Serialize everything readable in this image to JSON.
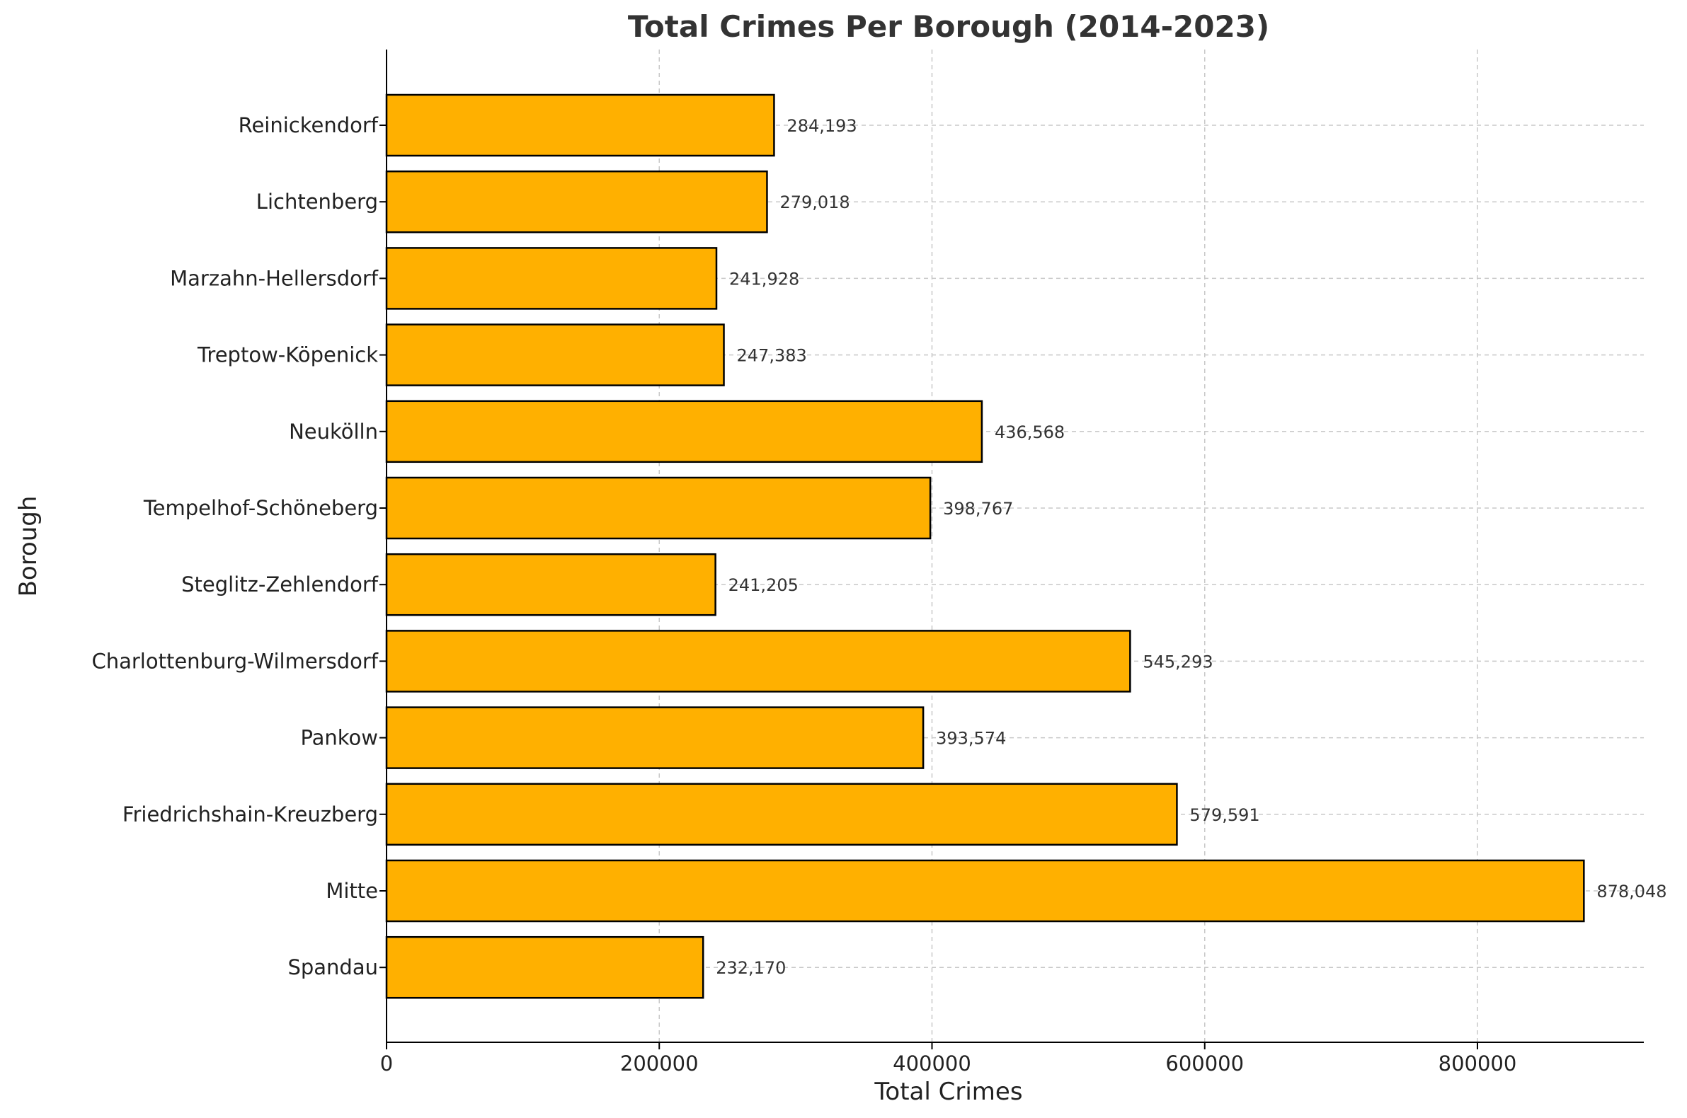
{
  "chart_data": {
    "type": "bar",
    "orientation": "horizontal",
    "title": "Total Crimes Per Borough (2014-2023)",
    "xlabel": "Total Crimes",
    "ylabel": "Borough",
    "categories": [
      "Spandau",
      "Mitte",
      "Friedrichshain-Kreuzberg",
      "Pankow",
      "Charlottenburg-Wilmersdorf",
      "Steglitz-Zehlendorf",
      "Tempelhof-Schöneberg",
      "Neukölln",
      "Treptow-Köpenick",
      "Marzahn-Hellersdorf",
      "Lichtenberg",
      "Reinickendorf"
    ],
    "values": [
      232170,
      878048,
      579591,
      393574,
      545293,
      241205,
      398767,
      436568,
      247383,
      241928,
      279018,
      284193
    ],
    "data_labels": [
      "232,170",
      "878,048",
      "579,591",
      "393,574",
      "545,293",
      "241,205",
      "398,767",
      "436,568",
      "247,383",
      "241,928",
      "279,018",
      "284,193"
    ],
    "xlim": [
      0,
      922000
    ],
    "xticks": [
      0,
      200000,
      400000,
      600000,
      800000
    ],
    "xtick_labels": [
      "0",
      "200000",
      "400000",
      "600000",
      "800000"
    ],
    "grid": true,
    "bar_color": "#FFB000",
    "bar_edge_color": "#000000"
  }
}
